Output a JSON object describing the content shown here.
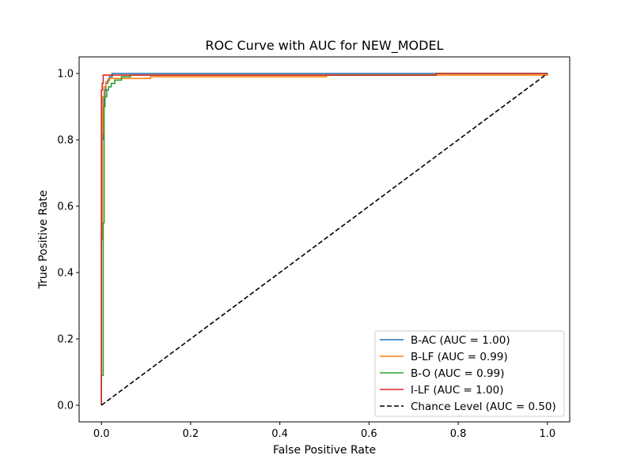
{
  "chart_data": {
    "type": "line",
    "title": "ROC Curve with AUC for NEW_MODEL",
    "xlabel": "False Positive Rate",
    "ylabel": "True Positive Rate",
    "xlim": [
      -0.05,
      1.05
    ],
    "ylim": [
      -0.05,
      1.05
    ],
    "xticks": [
      0.0,
      0.2,
      0.4,
      0.6,
      0.8,
      1.0
    ],
    "yticks": [
      0.0,
      0.2,
      0.4,
      0.6,
      0.8,
      1.0
    ],
    "xtick_labels": [
      "0.0",
      "0.2",
      "0.4",
      "0.6",
      "0.8",
      "1.0"
    ],
    "ytick_labels": [
      "0.0",
      "0.2",
      "0.4",
      "0.6",
      "0.8",
      "1.0"
    ],
    "grid": false,
    "legend_position": "lower-right",
    "series": [
      {
        "name": "B-AC (AUC = 1.00)",
        "color": "#1f77b4",
        "style": "solid",
        "points": [
          [
            0,
            0
          ],
          [
            0,
            0.52
          ],
          [
            0.002,
            0.52
          ],
          [
            0.002,
            0.8
          ],
          [
            0.004,
            0.8
          ],
          [
            0.004,
            0.9
          ],
          [
            0.006,
            0.9
          ],
          [
            0.006,
            0.93
          ],
          [
            0.008,
            0.93
          ],
          [
            0.008,
            0.95
          ],
          [
            0.01,
            0.95
          ],
          [
            0.01,
            0.97
          ],
          [
            0.014,
            0.97
          ],
          [
            0.014,
            0.98
          ],
          [
            0.018,
            0.98
          ],
          [
            0.018,
            0.99
          ],
          [
            0.024,
            0.99
          ],
          [
            0.024,
            1.0
          ],
          [
            1.0,
            1.0
          ]
        ]
      },
      {
        "name": "B-LF (AUC = 0.99)",
        "color": "#ff7f0e",
        "style": "solid",
        "points": [
          [
            0,
            0
          ],
          [
            0,
            0.5
          ],
          [
            0.002,
            0.5
          ],
          [
            0.002,
            0.82
          ],
          [
            0.003,
            0.82
          ],
          [
            0.003,
            0.93
          ],
          [
            0.006,
            0.93
          ],
          [
            0.006,
            0.96
          ],
          [
            0.01,
            0.96
          ],
          [
            0.01,
            0.975
          ],
          [
            0.016,
            0.975
          ],
          [
            0.016,
            0.985
          ],
          [
            0.11,
            0.985
          ],
          [
            0.11,
            0.99
          ],
          [
            0.505,
            0.99
          ],
          [
            0.505,
            0.995
          ],
          [
            1.0,
            0.995
          ],
          [
            1.0,
            1.0
          ]
        ]
      },
      {
        "name": "B-O (AUC = 0.99)",
        "color": "#2ca02c",
        "style": "solid",
        "points": [
          [
            0,
            0
          ],
          [
            0,
            0.09
          ],
          [
            0.004,
            0.09
          ],
          [
            0.004,
            0.55
          ],
          [
            0.006,
            0.55
          ],
          [
            0.006,
            0.9
          ],
          [
            0.008,
            0.9
          ],
          [
            0.008,
            0.93
          ],
          [
            0.012,
            0.93
          ],
          [
            0.012,
            0.95
          ],
          [
            0.016,
            0.95
          ],
          [
            0.016,
            0.96
          ],
          [
            0.022,
            0.96
          ],
          [
            0.022,
            0.97
          ],
          [
            0.03,
            0.97
          ],
          [
            0.03,
            0.98
          ],
          [
            0.045,
            0.98
          ],
          [
            0.045,
            0.99
          ],
          [
            0.065,
            0.99
          ],
          [
            0.065,
            0.995
          ],
          [
            0.75,
            0.995
          ],
          [
            0.75,
            1.0
          ],
          [
            1.0,
            1.0
          ]
        ]
      },
      {
        "name": "I-LF (AUC = 1.00)",
        "color": "#d62728",
        "style": "solid",
        "points": [
          [
            0,
            0
          ],
          [
            0,
            0.95
          ],
          [
            0.002,
            0.95
          ],
          [
            0.002,
            0.97
          ],
          [
            0.004,
            0.97
          ],
          [
            0.004,
            0.995
          ],
          [
            0.75,
            0.995
          ],
          [
            0.75,
            1.0
          ],
          [
            1.0,
            1.0
          ]
        ]
      },
      {
        "name": "Chance Level (AUC = 0.50)",
        "color": "#000000",
        "style": "dashed",
        "points": [
          [
            0,
            0
          ],
          [
            1,
            1
          ]
        ]
      }
    ]
  }
}
